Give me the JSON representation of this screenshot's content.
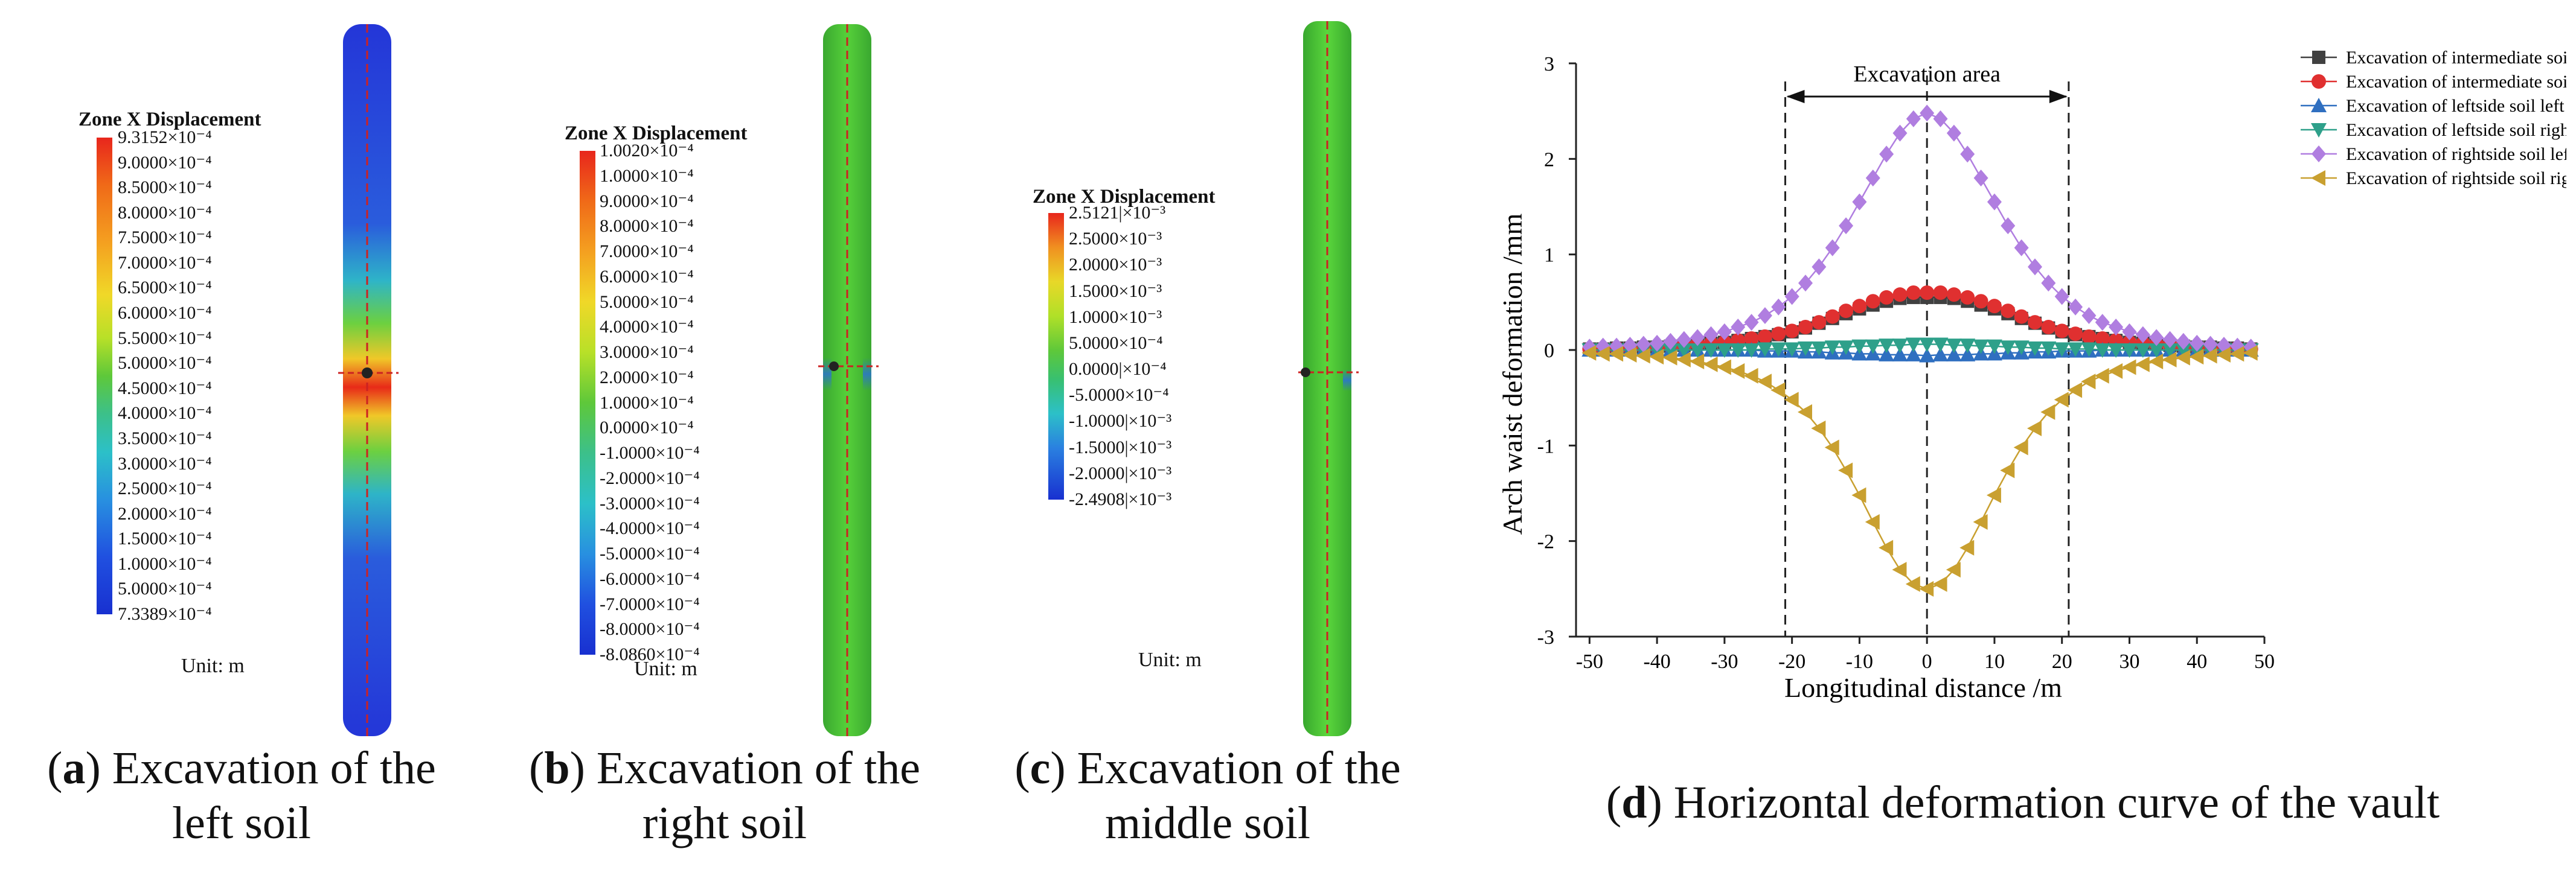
{
  "panels": [
    {
      "letter": "a",
      "caption_l1": ") Excavation of the",
      "caption_l2": "left soil",
      "legend_title": "Zone X Displacement",
      "ticks": [
        "9.3152×10⁻⁴",
        "9.0000×10⁻⁴",
        "8.5000×10⁻⁴",
        "8.0000×10⁻⁴",
        "7.5000×10⁻⁴",
        "7.0000×10⁻⁴",
        "6.5000×10⁻⁴",
        "6.0000×10⁻⁴",
        "5.5000×10⁻⁴",
        "5.0000×10⁻⁴",
        "4.5000×10⁻⁴",
        "4.0000×10⁻⁴",
        "3.5000×10⁻⁴",
        "3.0000×10⁻⁴",
        "2.5000×10⁻⁴",
        "2.0000×10⁻⁴",
        "1.5000×10⁻⁴",
        "1.0000×10⁻⁴",
        "5.0000×10⁻⁴",
        "7.3389×10⁻⁴"
      ],
      "unit": "Unit: m"
    },
    {
      "letter": "b",
      "caption_l1": ") Excavation of the",
      "caption_l2": "right soil",
      "legend_title": "Zone X Displacement",
      "ticks": [
        "1.0020×10⁻⁴",
        "1.0000×10⁻⁴",
        "9.0000×10⁻⁴",
        "8.0000×10⁻⁴",
        "7.0000×10⁻⁴",
        "6.0000×10⁻⁴",
        "5.0000×10⁻⁴",
        "4.0000×10⁻⁴",
        "3.0000×10⁻⁴",
        "2.0000×10⁻⁴",
        "1.0000×10⁻⁴",
        "0.0000×10⁻⁴",
        "-1.0000×10⁻⁴",
        "-2.0000×10⁻⁴",
        "-3.0000×10⁻⁴",
        "-4.0000×10⁻⁴",
        "-5.0000×10⁻⁴",
        "-6.0000×10⁻⁴",
        "-7.0000×10⁻⁴",
        "-8.0000×10⁻⁴",
        "-8.0860×10⁻⁴"
      ],
      "unit": "Unit: m"
    },
    {
      "letter": "c",
      "caption_l1": ") Excavation of the",
      "caption_l2": "middle soil",
      "legend_title": "Zone X Displacement",
      "ticks": [
        "2.5121|×10⁻³",
        "2.5000×10⁻³",
        "2.0000×10⁻³",
        "1.5000×10⁻³",
        "1.0000×10⁻³",
        "5.0000×10⁻⁴",
        "0.0000|×10⁻⁴",
        "-5.0000×10⁻⁴",
        "-1.0000|×10⁻³",
        "-1.5000|×10⁻³",
        "-2.0000|×10⁻³",
        "-2.4908|×10⁻³"
      ],
      "unit": "Unit: m"
    }
  ],
  "panel_d": {
    "letter": "d",
    "caption": ") Horizontal deformation curve of the vault"
  },
  "chart_data": {
    "type": "line",
    "xlabel": "Longitudinal distance /m",
    "ylabel": "Arch waist deformation  /mm",
    "xlim": [
      -52,
      50
    ],
    "ylim": [
      -3,
      3
    ],
    "xticks": [
      -50,
      -40,
      -30,
      -20,
      -10,
      0,
      10,
      20,
      30,
      40,
      50
    ],
    "yticks": [
      -3,
      -2,
      -1,
      0,
      1,
      2,
      3
    ],
    "annotation": "Excavation area",
    "excavation_bounds": [
      -21,
      21
    ],
    "legend_position": "top-right",
    "x": [
      -50,
      -48,
      -46,
      -44,
      -42,
      -40,
      -38,
      -36,
      -34,
      -32,
      -30,
      -28,
      -26,
      -24,
      -22,
      -20,
      -18,
      -16,
      -14,
      -12,
      -10,
      -8,
      -6,
      -4,
      -2,
      0,
      2,
      4,
      6,
      8,
      10,
      12,
      14,
      16,
      18,
      20,
      22,
      24,
      26,
      28,
      30,
      32,
      34,
      36,
      38,
      40,
      42,
      44,
      46,
      48
    ],
    "series": [
      {
        "name": "Excavation of intermediate soil left arch waist",
        "color": "#404040",
        "marker": "square",
        "values": [
          0.01,
          0.01,
          0.02,
          0.02,
          0.03,
          0.03,
          0.04,
          0.05,
          0.06,
          0.07,
          0.08,
          0.1,
          0.12,
          0.14,
          0.16,
          0.19,
          0.23,
          0.28,
          0.33,
          0.38,
          0.43,
          0.47,
          0.51,
          0.54,
          0.55,
          0.55,
          0.55,
          0.54,
          0.51,
          0.47,
          0.43,
          0.38,
          0.33,
          0.28,
          0.23,
          0.19,
          0.16,
          0.14,
          0.12,
          0.1,
          0.08,
          0.07,
          0.06,
          0.05,
          0.04,
          0.03,
          0.03,
          0.02,
          0.02,
          0.01
        ]
      },
      {
        "name": "Excavation of intermediate soil right arch waist",
        "color": "#e03030",
        "marker": "circle",
        "values": [
          0.01,
          0.01,
          0.02,
          0.02,
          0.03,
          0.03,
          0.04,
          0.05,
          0.06,
          0.07,
          0.08,
          0.1,
          0.12,
          0.14,
          0.17,
          0.2,
          0.24,
          0.29,
          0.35,
          0.41,
          0.46,
          0.51,
          0.55,
          0.58,
          0.6,
          0.6,
          0.6,
          0.58,
          0.55,
          0.51,
          0.46,
          0.41,
          0.35,
          0.29,
          0.24,
          0.2,
          0.17,
          0.14,
          0.12,
          0.1,
          0.08,
          0.07,
          0.06,
          0.05,
          0.04,
          0.03,
          0.03,
          0.02,
          0.02,
          0.01
        ]
      },
      {
        "name": "Excavation of leftside soil left arch waist",
        "color": "#2f6fc0",
        "marker": "triangle-up",
        "values": [
          0,
          0,
          0,
          0,
          0,
          0,
          0,
          0,
          0,
          0,
          0,
          0,
          0,
          -0.01,
          -0.01,
          -0.01,
          -0.02,
          -0.02,
          -0.03,
          -0.03,
          -0.04,
          -0.04,
          -0.05,
          -0.05,
          -0.05,
          -0.06,
          -0.05,
          -0.05,
          -0.05,
          -0.04,
          -0.04,
          -0.03,
          -0.03,
          -0.02,
          -0.02,
          -0.01,
          -0.01,
          -0.01,
          0,
          0,
          0,
          0,
          0,
          0,
          0,
          0,
          0,
          0,
          0,
          0
        ]
      },
      {
        "name": "Excavation of leftside soil right arch waist",
        "color": "#2ea08a",
        "marker": "triangle-down",
        "values": [
          0,
          0,
          0,
          0,
          0,
          0,
          0,
          0,
          0,
          0,
          0,
          0,
          0,
          0.01,
          0.01,
          0.01,
          0.02,
          0.02,
          0.03,
          0.03,
          0.04,
          0.04,
          0.05,
          0.05,
          0.06,
          0.06,
          0.06,
          0.05,
          0.05,
          0.04,
          0.04,
          0.03,
          0.03,
          0.02,
          0.02,
          0.01,
          0.01,
          0.01,
          0,
          0,
          0,
          0,
          0,
          0,
          0,
          0,
          0,
          0,
          0,
          0
        ]
      },
      {
        "name": "Excavation of rightside soil left arch",
        "color": "#b07ee0",
        "marker": "diamond",
        "values": [
          0.03,
          0.04,
          0.04,
          0.05,
          0.06,
          0.07,
          0.09,
          0.11,
          0.13,
          0.16,
          0.19,
          0.24,
          0.29,
          0.36,
          0.45,
          0.56,
          0.7,
          0.87,
          1.07,
          1.3,
          1.55,
          1.8,
          2.05,
          2.27,
          2.42,
          2.48,
          2.42,
          2.27,
          2.05,
          1.8,
          1.55,
          1.3,
          1.07,
          0.87,
          0.7,
          0.56,
          0.45,
          0.36,
          0.29,
          0.24,
          0.19,
          0.16,
          0.13,
          0.11,
          0.09,
          0.07,
          0.06,
          0.05,
          0.04,
          0.03
        ]
      },
      {
        "name": "Excavation of rightside soil right arch waist",
        "color": "#c9a030",
        "marker": "triangle-left",
        "values": [
          -0.03,
          -0.04,
          -0.04,
          -0.05,
          -0.06,
          -0.07,
          -0.08,
          -0.1,
          -0.12,
          -0.15,
          -0.18,
          -0.22,
          -0.27,
          -0.33,
          -0.42,
          -0.52,
          -0.65,
          -0.82,
          -1.02,
          -1.26,
          -1.52,
          -1.8,
          -2.07,
          -2.3,
          -2.45,
          -2.5,
          -2.45,
          -2.3,
          -2.07,
          -1.8,
          -1.52,
          -1.26,
          -1.02,
          -0.82,
          -0.65,
          -0.52,
          -0.42,
          -0.33,
          -0.27,
          -0.22,
          -0.18,
          -0.15,
          -0.12,
          -0.1,
          -0.08,
          -0.07,
          -0.06,
          -0.05,
          -0.04,
          -0.03
        ]
      }
    ]
  }
}
